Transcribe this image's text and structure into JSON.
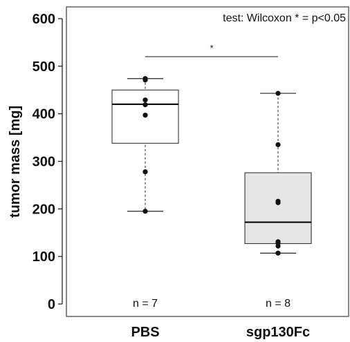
{
  "chart_data": {
    "type": "box",
    "ylabel": "tumor mass [mg]",
    "ylim": [
      0,
      600
    ],
    "yticks": [
      0,
      100,
      200,
      300,
      400,
      500,
      600
    ],
    "annotation": "test: Wilcoxon * = p<0.05",
    "significance": {
      "label": "*",
      "between": [
        "PBS",
        "sgp130Fc"
      ]
    },
    "categories": [
      "PBS",
      "sgp130Fc"
    ],
    "groups": [
      {
        "name": "PBS",
        "n_label": "n = 7",
        "fill": "#ffffff",
        "min": 195,
        "q1": 338,
        "median": 420,
        "q3": 450,
        "max": 474,
        "points": [
          474,
          471,
          429,
          419,
          397,
          278,
          195
        ]
      },
      {
        "name": "sgp130Fc",
        "n_label": "n = 8",
        "fill": "#e6e6e6",
        "min": 107,
        "q1": 127,
        "median": 172,
        "q3": 276,
        "max": 443,
        "points": [
          443,
          335,
          216,
          213,
          131,
          128,
          122,
          107
        ]
      }
    ]
  }
}
